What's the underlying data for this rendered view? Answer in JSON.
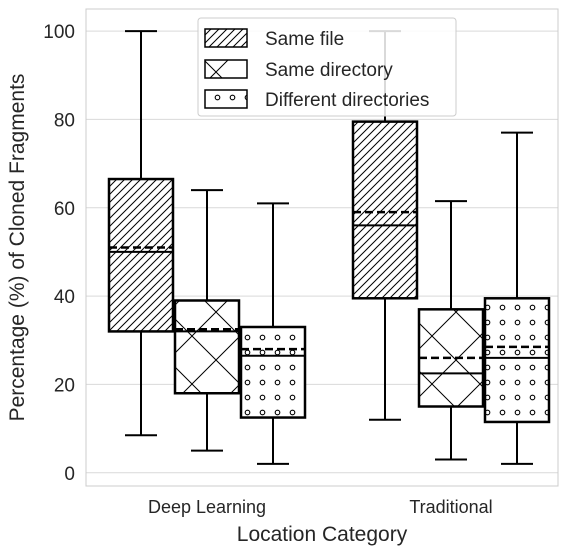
{
  "chart_data": {
    "type": "boxplot",
    "xlabel": "Location Category",
    "ylabel": "Percentage (%) of Cloned Fragments",
    "ylim": [
      -3,
      105
    ],
    "yticks": [
      0,
      20,
      40,
      60,
      80,
      100
    ],
    "grid": true,
    "legend_position": "top-center",
    "categories": [
      "Deep Learning",
      "Traditional"
    ],
    "series": [
      {
        "name": "Same file",
        "hatch": "diagonal",
        "boxes": [
          {
            "category": "Deep Learning",
            "whisker_low": 8.5,
            "q1": 32,
            "median": 50,
            "mean": 51,
            "q3": 66.5,
            "whisker_high": 100
          },
          {
            "category": "Traditional",
            "whisker_low": 12,
            "q1": 39.5,
            "median": 56,
            "mean": 59,
            "q3": 79.5,
            "whisker_high": 100
          }
        ]
      },
      {
        "name": "Same directory",
        "hatch": "cross",
        "boxes": [
          {
            "category": "Deep Learning",
            "whisker_low": 5,
            "q1": 18,
            "median": 32,
            "mean": 32.5,
            "q3": 39,
            "whisker_high": 64
          },
          {
            "category": "Traditional",
            "whisker_low": 3,
            "q1": 15,
            "median": 22.5,
            "mean": 26,
            "q3": 37,
            "whisker_high": 61.5
          }
        ]
      },
      {
        "name": "Different directories",
        "hatch": "circles",
        "boxes": [
          {
            "category": "Deep Learning",
            "whisker_low": 2,
            "q1": 12.5,
            "median": 26.5,
            "mean": 28,
            "q3": 33,
            "whisker_high": 61
          },
          {
            "category": "Traditional",
            "whisker_low": 2,
            "q1": 11.5,
            "median": 26,
            "mean": 28.5,
            "q3": 39.5,
            "whisker_high": 77
          }
        ]
      }
    ],
    "colors": {
      "box_face": "#ffffff",
      "box_edge": "#000000",
      "grid": "#d9d9d9",
      "axes_edge": "#cccccc",
      "text": "#262626"
    }
  }
}
